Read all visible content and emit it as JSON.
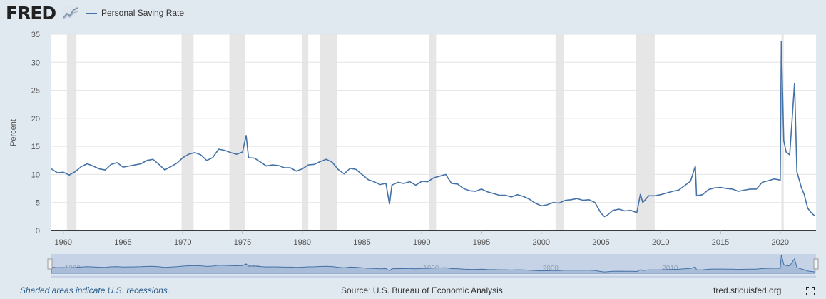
{
  "header": {
    "logo_text": "FRED",
    "legend_label": "Personal Saving Rate",
    "series_color": "#4572a7"
  },
  "footer": {
    "note": "Shaded areas indicate U.S. recessions.",
    "source": "Source: U.S. Bureau of Economic Analysis",
    "site": "fred.stlouisfed.org"
  },
  "chart_data": {
    "type": "line",
    "title": "",
    "xlabel": "",
    "ylabel": "Percent",
    "xlim": [
      1959,
      2023
    ],
    "ylim": [
      0,
      35
    ],
    "x_ticks": [
      1960,
      1965,
      1970,
      1975,
      1980,
      1985,
      1990,
      1995,
      2000,
      2005,
      2010,
      2015,
      2020
    ],
    "y_ticks": [
      0,
      5,
      10,
      15,
      20,
      25,
      30,
      35
    ],
    "grid": true,
    "legend": "top-left",
    "recessions": [
      [
        1960.3,
        1961.1
      ],
      [
        1969.9,
        1970.9
      ],
      [
        1973.9,
        1975.2
      ],
      [
        1980.0,
        1980.5
      ],
      [
        1981.5,
        1982.9
      ],
      [
        1990.6,
        1991.2
      ],
      [
        2001.2,
        2001.9
      ],
      [
        2007.9,
        2009.5
      ],
      [
        2020.1,
        2020.3
      ]
    ],
    "series": [
      {
        "name": "Personal Saving Rate",
        "x": [
          1959.0,
          1959.5,
          1960.0,
          1960.5,
          1961.0,
          1961.5,
          1962.0,
          1962.5,
          1963.0,
          1963.5,
          1964.0,
          1964.5,
          1965.0,
          1965.5,
          1966.0,
          1966.5,
          1967.0,
          1967.5,
          1968.0,
          1968.5,
          1969.0,
          1969.5,
          1970.0,
          1970.5,
          1971.0,
          1971.5,
          1972.0,
          1972.5,
          1973.0,
          1973.5,
          1974.0,
          1974.5,
          1975.0,
          1975.3,
          1975.5,
          1976.0,
          1976.5,
          1977.0,
          1977.5,
          1978.0,
          1978.5,
          1979.0,
          1979.5,
          1980.0,
          1980.5,
          1981.0,
          1981.5,
          1982.0,
          1982.5,
          1983.0,
          1983.5,
          1984.0,
          1984.5,
          1985.0,
          1985.5,
          1986.0,
          1986.5,
          1987.0,
          1987.3,
          1987.5,
          1988.0,
          1988.5,
          1989.0,
          1989.5,
          1990.0,
          1990.5,
          1991.0,
          1991.5,
          1992.0,
          1992.5,
          1993.0,
          1993.5,
          1994.0,
          1994.5,
          1995.0,
          1995.5,
          1996.0,
          1996.5,
          1997.0,
          1997.5,
          1998.0,
          1998.5,
          1999.0,
          1999.5,
          2000.0,
          2000.5,
          2001.0,
          2001.5,
          2002.0,
          2002.5,
          2003.0,
          2003.5,
          2004.0,
          2004.5,
          2005.0,
          2005.3,
          2005.5,
          2006.0,
          2006.5,
          2007.0,
          2007.5,
          2008.0,
          2008.3,
          2008.5,
          2009.0,
          2009.5,
          2010.0,
          2010.5,
          2011.0,
          2011.5,
          2012.0,
          2012.5,
          2012.9,
          2013.0,
          2013.5,
          2014.0,
          2014.5,
          2015.0,
          2015.5,
          2016.0,
          2016.5,
          2017.0,
          2017.5,
          2018.0,
          2018.5,
          2019.0,
          2019.5,
          2020.0,
          2020.1,
          2020.3,
          2020.5,
          2020.8,
          2021.0,
          2021.2,
          2021.4,
          2021.6,
          2021.8,
          2022.0,
          2022.3,
          2022.6,
          2022.9
        ],
        "values": [
          11.0,
          10.3,
          10.4,
          9.9,
          10.5,
          11.4,
          11.9,
          11.5,
          11.0,
          10.8,
          11.8,
          12.1,
          11.3,
          11.5,
          11.7,
          11.9,
          12.5,
          12.7,
          11.8,
          10.8,
          11.4,
          12.0,
          13.0,
          13.6,
          13.9,
          13.5,
          12.5,
          13.0,
          14.5,
          14.3,
          13.9,
          13.6,
          14.0,
          17.0,
          13.0,
          12.9,
          12.2,
          11.5,
          11.7,
          11.6,
          11.2,
          11.2,
          10.6,
          11.0,
          11.7,
          11.8,
          12.3,
          12.7,
          12.2,
          10.9,
          10.1,
          11.1,
          10.9,
          10.0,
          9.1,
          8.7,
          8.2,
          8.4,
          4.7,
          8.1,
          8.6,
          8.4,
          8.7,
          8.1,
          8.8,
          8.7,
          9.4,
          9.7,
          10.0,
          8.4,
          8.3,
          7.5,
          7.1,
          7.0,
          7.4,
          6.9,
          6.6,
          6.3,
          6.3,
          6.0,
          6.4,
          6.1,
          5.6,
          4.9,
          4.4,
          4.6,
          5.0,
          4.9,
          5.4,
          5.5,
          5.7,
          5.4,
          5.5,
          5.0,
          3.1,
          2.5,
          2.7,
          3.6,
          3.8,
          3.5,
          3.6,
          3.2,
          6.5,
          5.0,
          6.2,
          6.2,
          6.4,
          6.7,
          7.0,
          7.2,
          8.0,
          8.8,
          11.5,
          6.2,
          6.4,
          7.3,
          7.6,
          7.7,
          7.5,
          7.4,
          7.0,
          7.2,
          7.4,
          7.4,
          8.6,
          8.9,
          9.2,
          9.0,
          33.8,
          16.0,
          14.0,
          13.5,
          19.8,
          26.3,
          10.5,
          9.0,
          7.5,
          6.5,
          4.0,
          3.2,
          2.6
        ]
      }
    ],
    "navigator_ticks": [
      1960,
      1975,
      1990,
      2000,
      2010
    ]
  }
}
